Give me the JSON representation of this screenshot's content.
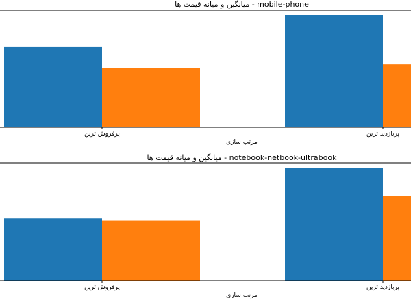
{
  "chart_data": [
    {
      "type": "bar",
      "title": "میانگین و میانه قیمت ها - mobile-phone",
      "xlabel": "مرتب سازی",
      "ylabel": "",
      "categories": [
        "پرفروش ترین",
        "پربازدید ترین"
      ],
      "ylim": [
        0,
        100
      ],
      "series": [
        {
          "values": [
            72,
            100
          ],
          "color": "#1f77b4"
        },
        {
          "values": [
            53,
            56
          ],
          "color": "#ff7f0e"
        }
      ],
      "grid": false,
      "legend": "none"
    },
    {
      "type": "bar",
      "title": "میانگین و میانه قیمت ها - notebook-netbook-ultrabook",
      "xlabel": "مرتب سازی",
      "ylabel": "",
      "categories": [
        "پرفروش ترین",
        "پربازدید ترین"
      ],
      "ylim": [
        0,
        100
      ],
      "series": [
        {
          "values": [
            55,
            100
          ],
          "color": "#1f77b4"
        },
        {
          "values": [
            53,
            75
          ],
          "color": "#ff7f0e"
        }
      ],
      "grid": false,
      "legend": "none"
    }
  ]
}
